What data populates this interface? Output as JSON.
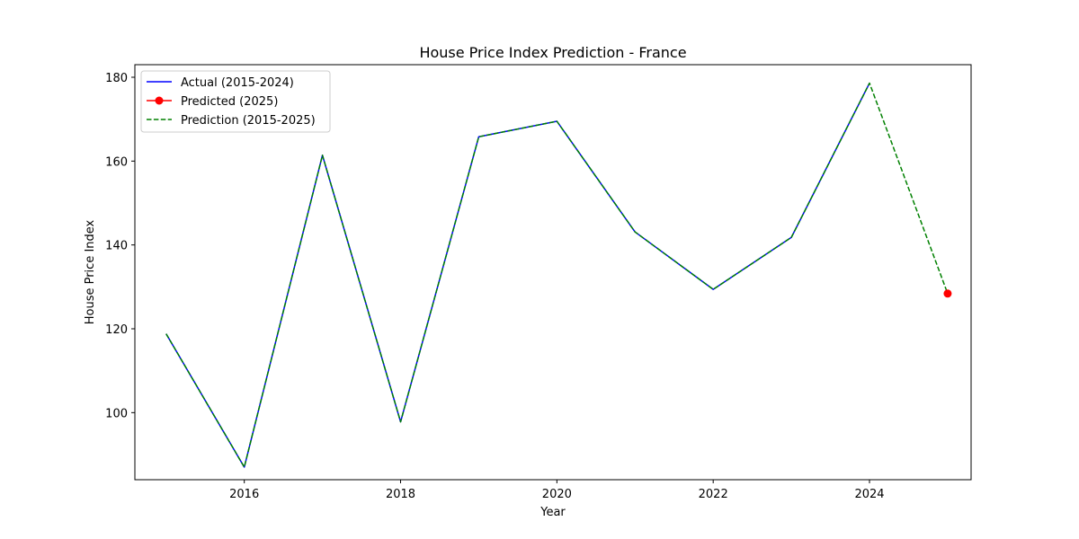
{
  "chart_data": {
    "type": "line",
    "title": "House Price Index Prediction - France",
    "xlabel": "Year",
    "ylabel": "House Price Index",
    "xlim": [
      2014.6,
      2025.3
    ],
    "ylim": [
      84,
      183
    ],
    "xticks": [
      2016,
      2018,
      2020,
      2022,
      2024
    ],
    "yticks": [
      100,
      120,
      140,
      160,
      180
    ],
    "grid": false,
    "legend_position": "top-left",
    "series": [
      {
        "name": "Actual (2015-2024)",
        "color": "#0000ff",
        "style": "solid",
        "x": [
          2015,
          2016,
          2017,
          2018,
          2019,
          2020,
          2021,
          2022,
          2023,
          2024
        ],
        "y": [
          118.8,
          87.0,
          161.4,
          97.8,
          165.8,
          169.5,
          143.1,
          129.4,
          141.8,
          178.6
        ]
      },
      {
        "name": "Predicted (2025)",
        "color": "#ff0000",
        "style": "marker",
        "x": [
          2025
        ],
        "y": [
          128.4
        ]
      },
      {
        "name": "Prediction (2015-2025)",
        "color": "#008000",
        "style": "dashed",
        "x": [
          2015,
          2016,
          2017,
          2018,
          2019,
          2020,
          2021,
          2022,
          2023,
          2024,
          2025
        ],
        "y": [
          118.8,
          87.0,
          161.4,
          97.8,
          165.8,
          169.5,
          143.1,
          129.4,
          141.8,
          178.6,
          128.4
        ]
      }
    ]
  }
}
